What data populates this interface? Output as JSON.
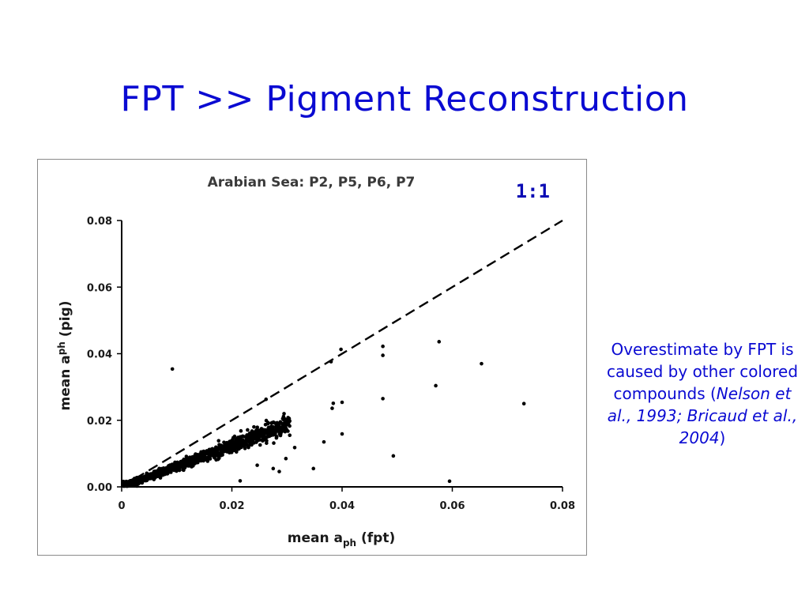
{
  "slide": {
    "title": "FPT >> Pigment Reconstruction"
  },
  "note": {
    "prefix": "Overestimate by FPT is caused by other colored compounds (",
    "citation": "Nelson et al., 1993; Bricaud et al., 2004",
    "suffix": ")"
  },
  "colors": {
    "title": "#0a0ad2",
    "points": "#000000",
    "reference_line": "#000000"
  },
  "chart_data": {
    "type": "scatter",
    "title": "Arabian Sea: P2, P5, P6, P7",
    "xlabel_main": "mean a",
    "xlabel_sub": "ph",
    "xlabel_tail": " (fpt)",
    "ylabel_main": "mean a",
    "ylabel_sup": "ph",
    "ylabel_tail": " (pig)",
    "xlim": [
      0,
      0.08
    ],
    "ylim": [
      0,
      0.08
    ],
    "xticks": [
      "0",
      "0.02",
      "0.04",
      "0.06",
      "0.08"
    ],
    "yticks": [
      "0.00",
      "0.02",
      "0.04",
      "0.06",
      "0.08"
    ],
    "reference_line": {
      "label": "1:1",
      "style": "dashed",
      "from": [
        0,
        0
      ],
      "to": [
        0.08,
        0.08
      ]
    },
    "outliers": [
      [
        0.0092,
        0.0354
      ],
      [
        0.038,
        0.0376
      ],
      [
        0.0398,
        0.0413
      ],
      [
        0.0474,
        0.0422
      ],
      [
        0.0474,
        0.0395
      ],
      [
        0.0576,
        0.0436
      ],
      [
        0.0653,
        0.037
      ],
      [
        0.057,
        0.0304
      ],
      [
        0.0474,
        0.0265
      ],
      [
        0.04,
        0.0254
      ],
      [
        0.0384,
        0.0251
      ],
      [
        0.0382,
        0.0236
      ],
      [
        0.04,
        0.0159
      ],
      [
        0.0367,
        0.0135
      ],
      [
        0.0493,
        0.0093
      ],
      [
        0.073,
        0.025
      ],
      [
        0.0595,
        0.0017
      ],
      [
        0.0348,
        0.0055
      ],
      [
        0.0288,
        0.0195
      ],
      [
        0.0302,
        0.0208
      ],
      [
        0.0314,
        0.0118
      ],
      [
        0.0298,
        0.0085
      ],
      [
        0.0286,
        0.0046
      ],
      [
        0.0246,
        0.0065
      ],
      [
        0.0262,
        0.0263
      ],
      [
        0.0215,
        0.0018
      ],
      [
        0.0226,
        0.0136
      ],
      [
        0.0305,
        0.0155
      ],
      [
        0.0275,
        0.0055
      ],
      [
        0.024,
        0.018
      ]
    ],
    "cluster": {
      "description_count": 1200,
      "x_range": [
        0.0003,
        0.0305
      ],
      "slope": 0.62,
      "spread": 0.0027,
      "seed": 17
    }
  }
}
